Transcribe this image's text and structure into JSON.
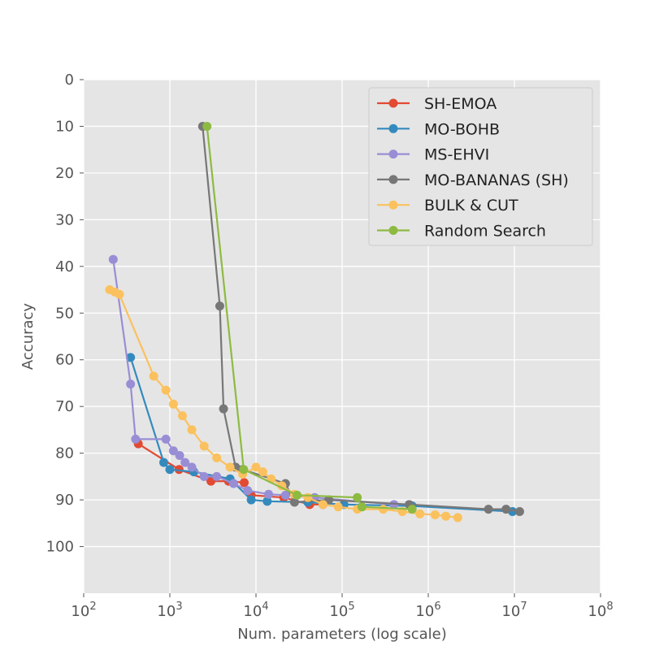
{
  "chart_data": {
    "type": "line",
    "title": "",
    "xlabel": "Num. parameters (log scale)",
    "ylabel": "Accuracy",
    "x_scale": "log",
    "xlim": [
      100,
      100000000
    ],
    "ylim": [
      0,
      110
    ],
    "y_inverted": true,
    "grid": true,
    "legend_position": "top-right",
    "x_tick_labels": [
      {
        "base": "10",
        "exp": "2"
      },
      {
        "base": "10",
        "exp": "3"
      },
      {
        "base": "10",
        "exp": "4"
      },
      {
        "base": "10",
        "exp": "5"
      },
      {
        "base": "10",
        "exp": "6"
      },
      {
        "base": "10",
        "exp": "7"
      },
      {
        "base": "10",
        "exp": "8"
      }
    ],
    "y_tick_labels": [
      "0",
      "10",
      "20",
      "30",
      "40",
      "50",
      "60",
      "70",
      "80",
      "90",
      "100"
    ],
    "series": [
      {
        "name": "SH-EMOA",
        "color": "#E24A33",
        "x": [
          430,
          1280,
          3000,
          4800,
          7300,
          8800,
          21000,
          42000,
          60000
        ],
        "y": [
          78,
          83.5,
          86,
          86,
          86.3,
          89,
          89.5,
          91,
          91
        ]
      },
      {
        "name": "MO-BOHB",
        "color": "#348ABD",
        "x": [
          350,
          850,
          1000,
          1900,
          5000,
          8800,
          13500,
          40000,
          105000,
          650000,
          9500000
        ],
        "y": [
          59.5,
          82,
          83.5,
          84,
          85.5,
          90,
          90.3,
          90.5,
          91,
          91.3,
          92.5
        ]
      },
      {
        "name": "MS-EHVI",
        "color": "#988ED5",
        "x": [
          220,
          350,
          400,
          900,
          1100,
          1300,
          1500,
          1800,
          2500,
          3500,
          5500,
          8000,
          14000,
          22000,
          48000,
          400000
        ],
        "y": [
          38.5,
          65.2,
          77,
          77,
          79.5,
          80.5,
          82,
          83,
          85,
          85,
          86.5,
          88,
          88.8,
          89,
          89.5,
          91
        ]
      },
      {
        "name": "MO-BANANAS (SH)",
        "color": "#777777",
        "x": [
          2400,
          3800,
          4200,
          5800,
          7000,
          22000,
          28000,
          70000,
          600000,
          5000000,
          8000000,
          11500000
        ],
        "y": [
          10,
          48.5,
          70.5,
          83,
          83.5,
          86.5,
          90.5,
          90,
          91,
          92,
          92,
          92.5
        ]
      },
      {
        "name": "BULK & CUT",
        "color": "#FBC15E",
        "x": [
          200,
          230,
          260,
          650,
          900,
          1100,
          1400,
          1800,
          2500,
          3500,
          5000,
          7000,
          10000,
          12000,
          15000,
          20000,
          28000,
          40000,
          60000,
          90000,
          150000,
          300000,
          500000,
          800000,
          1200000,
          1600000,
          2200000
        ],
        "y": [
          45,
          45.5,
          46,
          63.5,
          66.5,
          69.5,
          72,
          75,
          78.5,
          81,
          83,
          84.5,
          83,
          84,
          85.5,
          87,
          88.8,
          89.5,
          91,
          91.5,
          92,
          92,
          92.5,
          93,
          93.2,
          93.5,
          93.8
        ]
      },
      {
        "name": "Random Search",
        "color": "#8EBA42",
        "x": [
          2700,
          7200,
          30000,
          150000,
          170000,
          650000
        ],
        "y": [
          10,
          83.5,
          89,
          89.5,
          91.5,
          92
        ]
      }
    ]
  }
}
